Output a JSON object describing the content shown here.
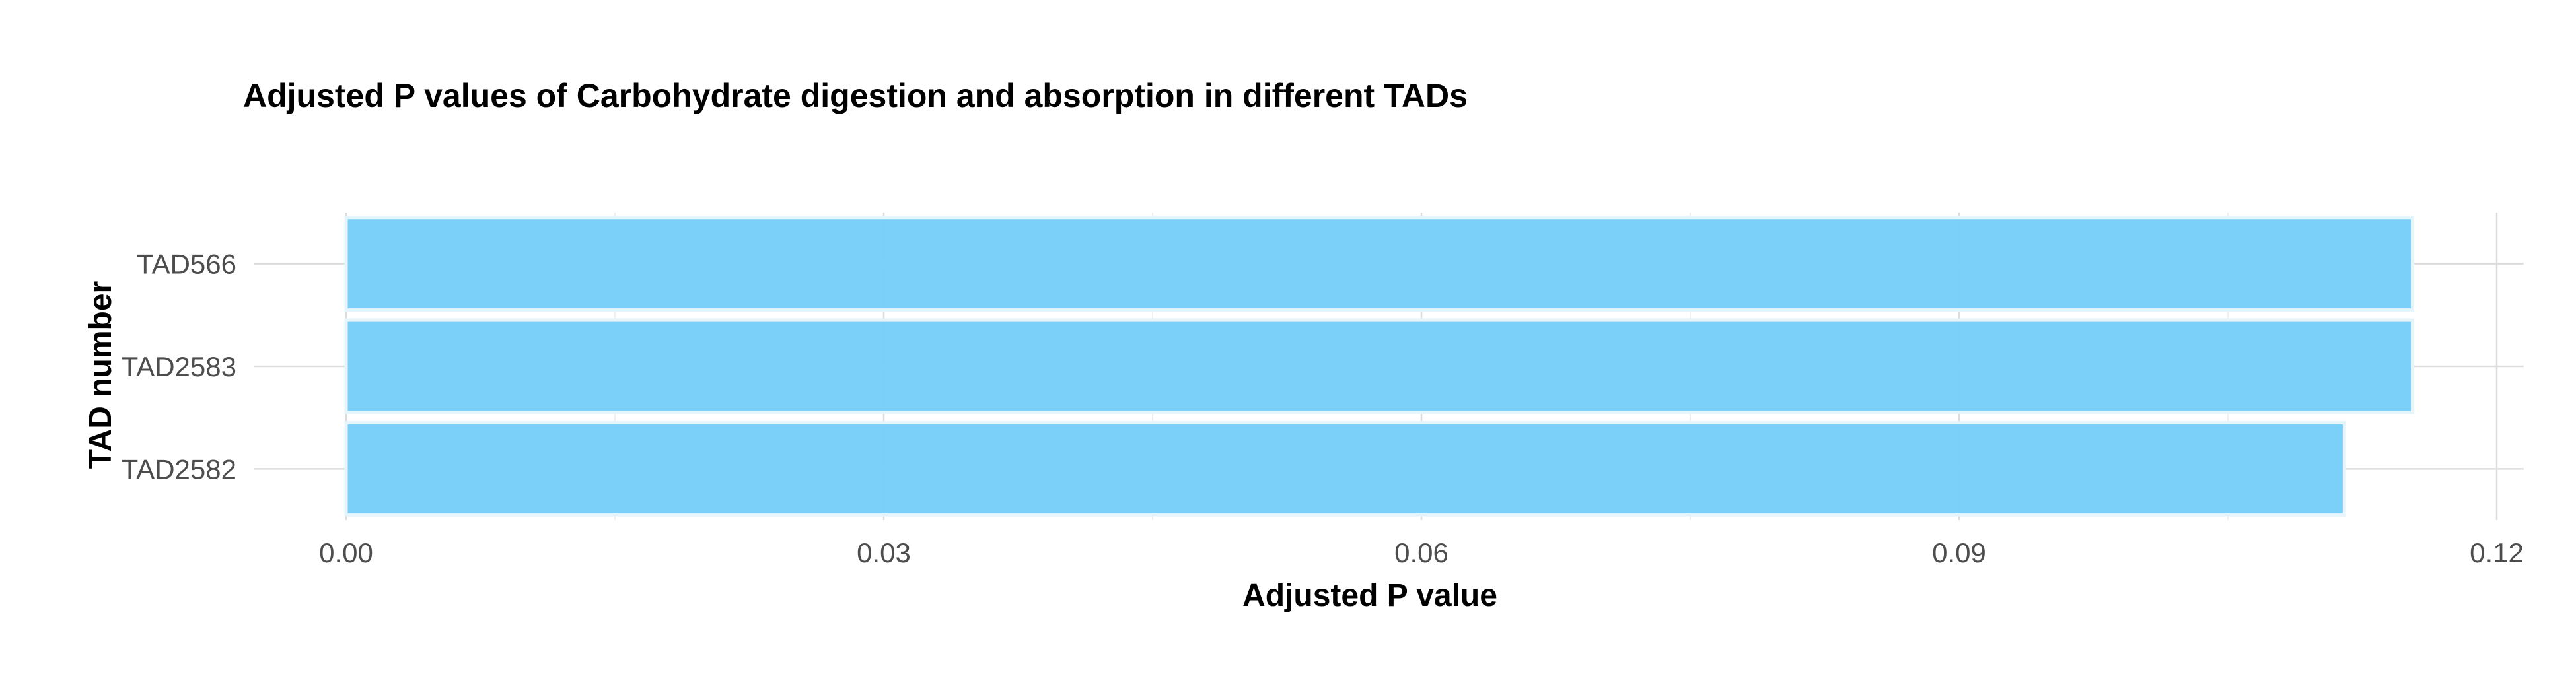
{
  "chart_data": {
    "type": "bar",
    "orientation": "horizontal",
    "title": "Adjusted P values of Carbohydrate digestion and absorption in different TADs",
    "xlabel": "Adjusted P value",
    "ylabel": "TAD number",
    "categories": [
      "TAD566",
      "TAD2583",
      "TAD2582"
    ],
    "values": [
      0.1153,
      0.1153,
      0.1115
    ],
    "xlim": [
      0,
      0.12
    ],
    "xticks": [
      "0.00",
      "0.03",
      "0.06",
      "0.09",
      "0.12"
    ],
    "xtick_values": [
      0,
      0.03,
      0.06,
      0.09,
      0.12
    ],
    "grid": true,
    "legend": "none",
    "bar_color": "#74CDFA"
  }
}
